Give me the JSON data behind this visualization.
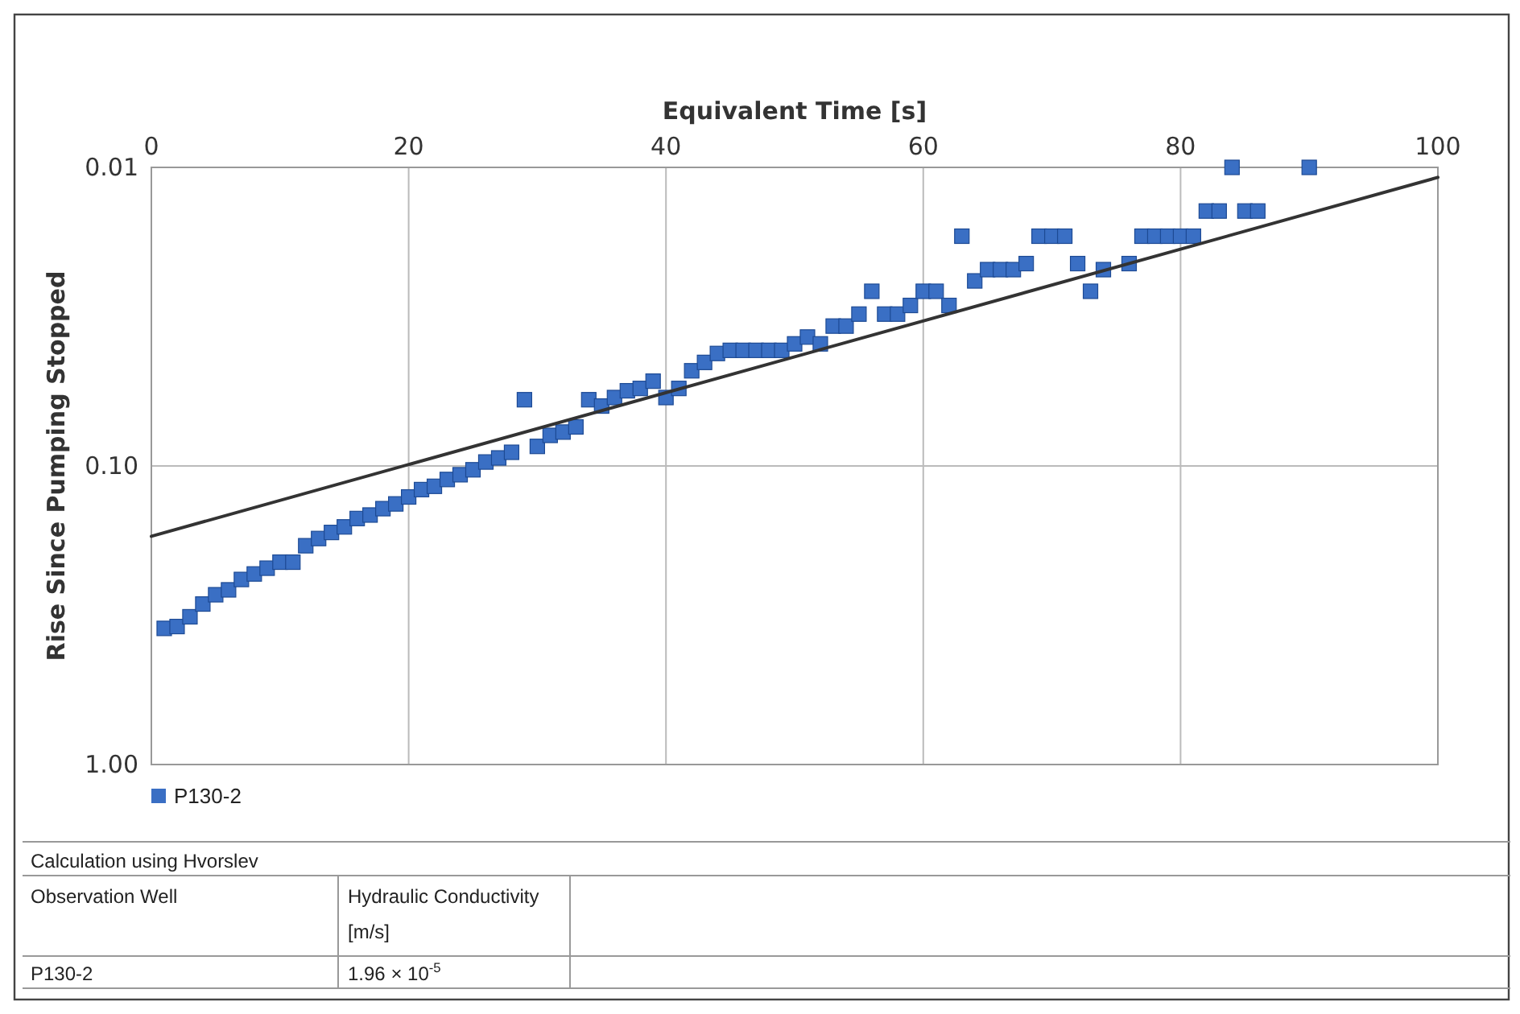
{
  "chart_data": {
    "type": "scatter",
    "xlabel": "Equivalent Time [s]",
    "ylabel": "Rise Since Pumping Stopped",
    "xlim": [
      0,
      100
    ],
    "xticks": [
      0,
      20,
      40,
      60,
      80,
      100
    ],
    "ylim": [
      1,
      0.01
    ],
    "yticks": [
      {
        "value": 0.01,
        "label": "0.01"
      },
      {
        "value": 0.1,
        "label": "0.10"
      },
      {
        "value": 1,
        "label": "1.00"
      }
    ],
    "log": "y",
    "grid": true,
    "legend": "bottom left",
    "series": [
      {
        "name": "P130-2",
        "color": "#3a6fc4",
        "marker": "square",
        "x": [
          1,
          2,
          3,
          4,
          5,
          6,
          7,
          8,
          9,
          10,
          11,
          12,
          13,
          14,
          15,
          16,
          17,
          18,
          19,
          20,
          21,
          22,
          23,
          24,
          25,
          26,
          27,
          28,
          29,
          30,
          31,
          32,
          33,
          34,
          35,
          36,
          37,
          38,
          39,
          40,
          41,
          42,
          43,
          44,
          45,
          46,
          47,
          48,
          49,
          50,
          51,
          52,
          53,
          54,
          55,
          56,
          57,
          58,
          59,
          60,
          61,
          62,
          63,
          64,
          65,
          66,
          67,
          68,
          69,
          70,
          71,
          72,
          73,
          74,
          76,
          77,
          78,
          79,
          80,
          81,
          82,
          83,
          84,
          85,
          86,
          90
        ],
        "values": [
          0.35,
          0.345,
          0.32,
          0.29,
          0.27,
          0.26,
          0.24,
          0.23,
          0.22,
          0.21,
          0.21,
          0.185,
          0.175,
          0.167,
          0.16,
          0.15,
          0.146,
          0.139,
          0.134,
          0.127,
          0.12,
          0.117,
          0.111,
          0.107,
          0.103,
          0.097,
          0.094,
          0.09,
          0.06,
          0.086,
          0.079,
          0.077,
          0.074,
          0.06,
          0.063,
          0.059,
          0.056,
          0.055,
          0.052,
          0.059,
          0.055,
          0.048,
          0.045,
          0.042,
          0.041,
          0.041,
          0.041,
          0.041,
          0.041,
          0.039,
          0.037,
          0.039,
          0.034,
          0.034,
          0.031,
          0.026,
          0.031,
          0.031,
          0.029,
          0.026,
          0.026,
          0.029,
          0.017,
          0.024,
          0.022,
          0.022,
          0.022,
          0.021,
          0.017,
          0.017,
          0.017,
          0.021,
          0.026,
          0.022,
          0.021,
          0.017,
          0.017,
          0.017,
          0.017,
          0.017,
          0.014,
          0.014,
          0.01,
          0.014,
          0.014,
          0.01
        ]
      },
      {
        "type": "line",
        "color": "#333333",
        "marker": "none",
        "x": [
          0,
          100
        ],
        "values": [
          0.172,
          0.0108
        ]
      }
    ],
    "annotations": [
      "Calculation using Hvorslev",
      "Observation Well",
      "Hydraulic Conductivity [m/s]",
      "P130-2",
      "1.96 × 10$^{-5}$"
    ]
  }
}
